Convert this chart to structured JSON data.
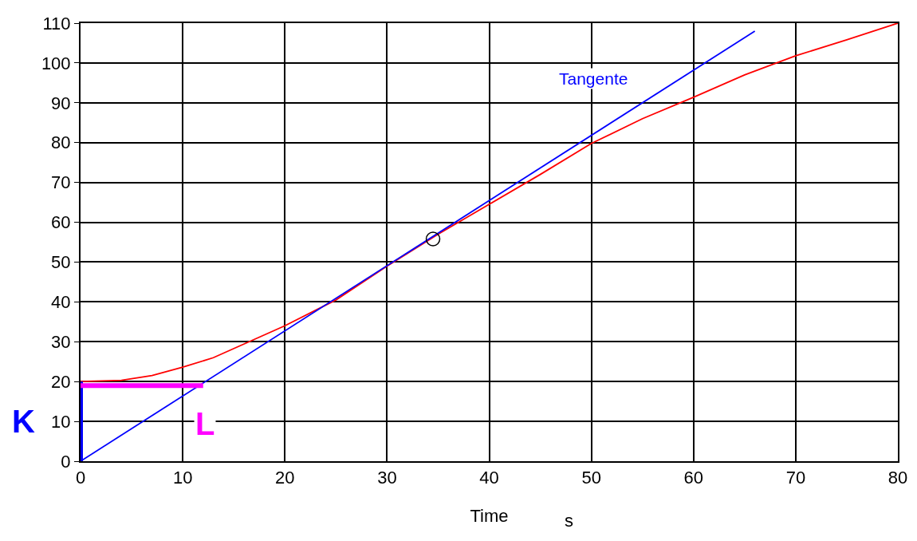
{
  "chart_data": {
    "type": "line",
    "xlabel": "Time",
    "annotations": [
      "s"
    ],
    "xlim": [
      0,
      80
    ],
    "xticks": [
      0,
      10,
      20,
      30,
      40,
      50,
      60,
      70,
      80
    ],
    "ylim": [
      0,
      110
    ],
    "yticks": [
      0,
      10,
      20,
      30,
      40,
      50,
      60,
      70,
      80,
      90,
      100,
      110
    ],
    "grid": true,
    "series": [
      {
        "color": "#ff0000",
        "x": [
          0,
          4,
          7,
          10,
          13,
          16.5,
          20,
          25,
          30,
          35,
          40,
          45,
          50,
          55,
          60,
          65,
          70,
          75,
          80
        ],
        "values": [
          20,
          20.3,
          21.5,
          23.6,
          26,
          30,
          34,
          40.5,
          49,
          57,
          64.5,
          72,
          79.8,
          86,
          91.4,
          97,
          101.8,
          105.8,
          110
        ]
      },
      {
        "name": "Tangente",
        "color": "#0000ff",
        "x": [
          0,
          66
        ],
        "values": [
          0,
          108
        ]
      },
      {
        "type": "scatter",
        "marker": "circle",
        "color": "#000000",
        "x": [
          34.5
        ],
        "values": [
          55.8
        ]
      },
      {
        "name": "K",
        "color": "#0000ff",
        "x": [
          0,
          0
        ],
        "values": [
          0,
          20
        ]
      },
      {
        "name": "L",
        "color": "#ff00ff",
        "x": [
          0,
          12
        ],
        "values": [
          19,
          19
        ]
      }
    ]
  }
}
